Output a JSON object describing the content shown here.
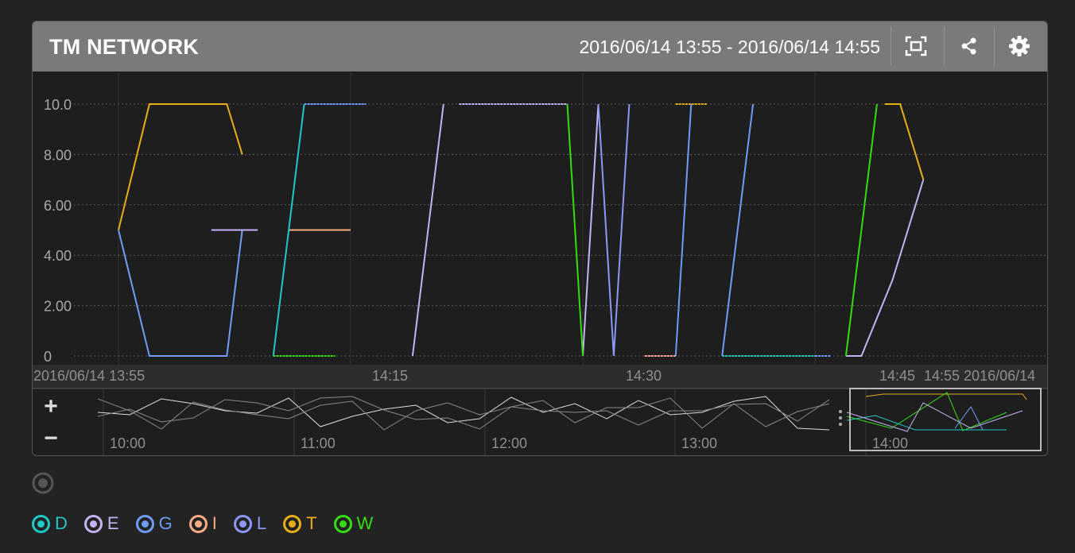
{
  "panel": {
    "title": "TM NETWORK",
    "time_range": "2016/06/14 13:55 - 2016/06/14 14:55"
  },
  "header_buttons": [
    {
      "name": "fullscreen-icon"
    },
    {
      "name": "share-icon"
    },
    {
      "name": "gear-icon"
    }
  ],
  "x_tick_labels": [
    "2016/06/14 13:55",
    "14:15",
    "14:30",
    "14:45",
    "14:55 2016/06/14"
  ],
  "navigator": {
    "zoom_in": "+",
    "zoom_out": "−",
    "tick_labels": [
      "10:00",
      "11:00",
      "12:00",
      "13:00",
      "14:00"
    ]
  },
  "legend": [
    {
      "label": "D",
      "color": "#1fc8c8"
    },
    {
      "label": "E",
      "color": "#c4b2f4"
    },
    {
      "label": "G",
      "color": "#6f9cf7"
    },
    {
      "label": "I",
      "color": "#f7ae84"
    },
    {
      "label": "L",
      "color": "#8b98f5"
    },
    {
      "label": "T",
      "color": "#e8ad1a"
    },
    {
      "label": "W",
      "color": "#35dc12"
    }
  ],
  "chart_data": {
    "type": "line",
    "title": "",
    "x_unit": "minutes from 13:55",
    "xlim": [
      0,
      60
    ],
    "ylim": [
      0,
      10
    ],
    "y_ticks": [
      0,
      2,
      4,
      6,
      8,
      10
    ],
    "y_tick_labels": [
      "0",
      "2.00",
      "4.00",
      "6.00",
      "8.00",
      "10.0"
    ],
    "x_ticks": [
      0,
      15,
      30,
      45
    ],
    "grid": true,
    "series": [
      {
        "name": "T",
        "color": "#e8ad1a",
        "segments": [
          [
            [
              0,
              5
            ],
            [
              2,
              10
            ],
            [
              7,
              10
            ],
            [
              8,
              8
            ]
          ],
          [
            [
              36,
              10
            ],
            [
              38,
              10
            ]
          ],
          [
            [
              49.5,
              10
            ],
            [
              50.5,
              10
            ],
            [
              52,
              7
            ]
          ]
        ]
      },
      {
        "name": "G",
        "color": "#6f9cf7",
        "segments": [
          [
            [
              0,
              5
            ],
            [
              2,
              0
            ],
            [
              7,
              0
            ],
            [
              8,
              5
            ]
          ],
          [
            [
              12,
              10
            ],
            [
              16,
              10
            ]
          ],
          [
            [
              36,
              0
            ],
            [
              37,
              10
            ]
          ],
          [
            [
              39,
              0
            ],
            [
              41,
              10
            ]
          ],
          [
            [
              45,
              0
            ],
            [
              46,
              0
            ]
          ]
        ]
      },
      {
        "name": "E",
        "color": "#c4b2f4",
        "segments": [
          [
            [
              6,
              5
            ],
            [
              9,
              5
            ]
          ],
          [
            [
              22,
              10
            ],
            [
              29,
              10
            ]
          ],
          [
            [
              19,
              0
            ],
            [
              21,
              10
            ]
          ],
          [
            [
              30,
              0
            ],
            [
              31,
              10
            ]
          ],
          [
            [
              47,
              0
            ],
            [
              48,
              0
            ],
            [
              50,
              3
            ],
            [
              52,
              7
            ]
          ]
        ]
      },
      {
        "name": "I",
        "color": "#f7ae84",
        "segments": [
          [
            [
              11,
              5
            ],
            [
              15,
              5
            ]
          ],
          [
            [
              34,
              0
            ],
            [
              36,
              0
            ]
          ]
        ]
      },
      {
        "name": "D",
        "color": "#1fc8c8",
        "segments": [
          [
            [
              10,
              0
            ],
            [
              12,
              10
            ]
          ],
          [
            [
              39,
              0
            ],
            [
              45,
              0
            ]
          ]
        ]
      },
      {
        "name": "W",
        "color": "#35dc12",
        "segments": [
          [
            [
              10,
              0
            ],
            [
              14,
              0
            ]
          ],
          [
            [
              29,
              10
            ],
            [
              30,
              0
            ]
          ],
          [
            [
              47,
              0
            ],
            [
              49,
              10
            ]
          ]
        ]
      },
      {
        "name": "L",
        "color": "#8b98f5",
        "segments": [
          [
            [
              31,
              10
            ],
            [
              32,
              0
            ],
            [
              33,
              10
            ]
          ]
        ]
      }
    ]
  }
}
